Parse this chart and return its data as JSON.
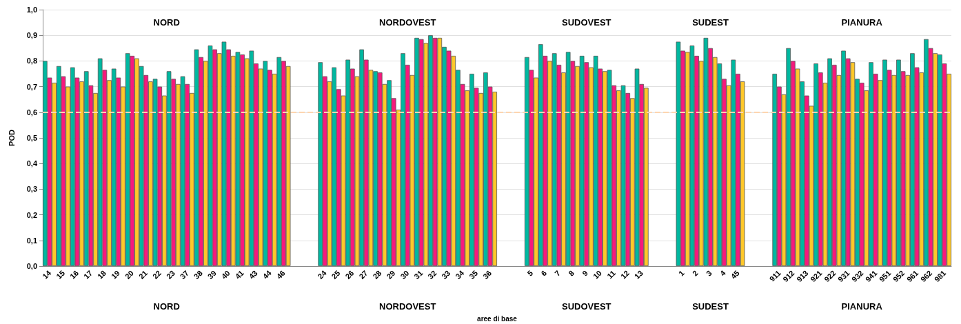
{
  "chart_data": {
    "type": "bar",
    "ylabel": "POD",
    "xlabel": "aree di base",
    "categories": [
      "14",
      "15",
      "16",
      "17",
      "18",
      "19",
      "20",
      "21",
      "22",
      "23",
      "37",
      "38",
      "39",
      "40",
      "41",
      "43",
      "44",
      "46",
      null,
      null,
      "24",
      "25",
      "26",
      "27",
      "28",
      "29",
      "30",
      "31",
      "32",
      "33",
      "34",
      "35",
      "36",
      null,
      null,
      "5",
      "6",
      "7",
      "8",
      "9",
      "10",
      "11",
      "12",
      "13",
      null,
      null,
      "1",
      "2",
      "3",
      "4",
      "45",
      null,
      null,
      "911",
      "912",
      "913",
      "921",
      "922",
      "931",
      "932",
      "941",
      "951",
      "952",
      "961",
      "962",
      "981"
    ],
    "series": [
      {
        "color": "#00b8a0",
        "values": [
          0.8,
          0.78,
          0.775,
          0.76,
          0.81,
          0.77,
          0.83,
          0.78,
          0.73,
          0.76,
          0.74,
          0.845,
          0.86,
          0.875,
          0.835,
          0.84,
          0.8,
          0.815,
          null,
          null,
          0.795,
          0.775,
          0.805,
          0.845,
          0.76,
          0.725,
          0.83,
          0.89,
          0.9,
          0.855,
          0.765,
          0.75,
          0.755,
          null,
          null,
          0.815,
          0.865,
          0.83,
          0.835,
          0.82,
          0.82,
          0.765,
          0.705,
          0.77,
          null,
          null,
          0.875,
          0.86,
          0.89,
          0.79,
          0.805,
          null,
          null,
          0.75,
          0.85,
          0.72,
          0.79,
          0.81,
          0.84,
          0.73,
          0.795,
          0.805,
          0.805,
          0.83,
          0.885,
          0.825
        ]
      },
      {
        "color": "#f7197d",
        "values": [
          0.735,
          0.74,
          0.735,
          0.705,
          0.765,
          0.735,
          0.82,
          0.745,
          0.7,
          0.73,
          0.71,
          0.815,
          0.845,
          0.845,
          0.825,
          0.79,
          0.765,
          0.8,
          null,
          null,
          0.74,
          0.69,
          0.77,
          0.805,
          0.755,
          0.655,
          0.785,
          0.885,
          0.89,
          0.84,
          0.71,
          0.695,
          0.7,
          null,
          null,
          0.765,
          0.82,
          0.785,
          0.8,
          0.795,
          0.77,
          0.705,
          0.675,
          0.71,
          null,
          null,
          0.84,
          0.82,
          0.85,
          0.73,
          0.75,
          null,
          null,
          0.7,
          0.8,
          0.665,
          0.755,
          0.785,
          0.81,
          0.715,
          0.75,
          0.765,
          0.76,
          0.775,
          0.85,
          0.79
        ]
      },
      {
        "color": "#ffc82a",
        "values": [
          0.715,
          0.7,
          0.72,
          0.675,
          0.725,
          0.7,
          0.81,
          0.72,
          0.665,
          0.71,
          0.675,
          0.8,
          0.83,
          0.82,
          0.81,
          0.77,
          0.75,
          0.78,
          null,
          null,
          0.72,
          0.665,
          0.74,
          0.765,
          0.71,
          0.61,
          0.745,
          0.87,
          0.89,
          0.82,
          0.685,
          0.675,
          0.68,
          null,
          null,
          0.735,
          0.8,
          0.755,
          0.78,
          0.775,
          0.76,
          0.685,
          0.655,
          0.695,
          null,
          null,
          0.835,
          0.8,
          0.815,
          0.705,
          0.72,
          null,
          null,
          0.67,
          0.77,
          0.625,
          0.715,
          0.745,
          0.795,
          0.685,
          0.725,
          0.745,
          0.745,
          0.755,
          0.83,
          0.75
        ]
      }
    ],
    "ylim": [
      0,
      1
    ],
    "yticks": [
      {
        "value": 0,
        "label": "0,0"
      },
      {
        "value": 0.1,
        "label": "0,1"
      },
      {
        "value": 0.2,
        "label": "0,2"
      },
      {
        "value": 0.3,
        "label": "0,3"
      },
      {
        "value": 0.4,
        "label": "0,4"
      },
      {
        "value": 0.5,
        "label": "0,5"
      },
      {
        "value": 0.6,
        "label": "0,6"
      },
      {
        "value": 0.7,
        "label": "0,7"
      },
      {
        "value": 0.8,
        "label": "0,8"
      },
      {
        "value": 0.9,
        "label": "0,9"
      },
      {
        "value": 1,
        "label": "1,0"
      }
    ],
    "grid": "y",
    "ref_lines": [
      {
        "axis": "y",
        "value": 0.6,
        "color": "#fdd5b0",
        "line_style": "dashed"
      }
    ],
    "annotations": [
      "NORD",
      "NORDOVEST",
      "SUDOVEST",
      "SUDEST",
      "PIANURA",
      "NORD",
      "NORDOVEST",
      "SUDOVEST",
      "SUDEST",
      "PIANURA"
    ]
  }
}
